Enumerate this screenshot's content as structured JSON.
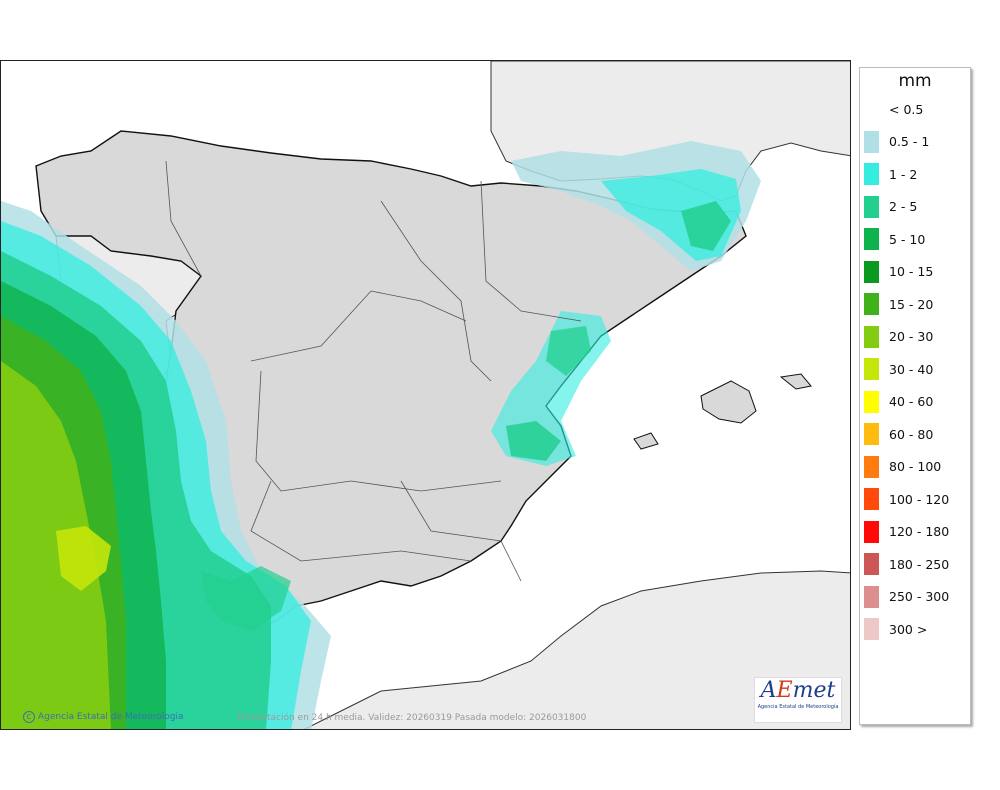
{
  "legend": {
    "unit": "mm",
    "items": [
      {
        "label": "< 0.5",
        "color": "#ffffff"
      },
      {
        "label": "0.5 - 1",
        "color": "#b0dfe5"
      },
      {
        "label": "1 - 2",
        "color": "#34eddf"
      },
      {
        "label": "2 - 5",
        "color": "#22cf8e"
      },
      {
        "label": "5 - 10",
        "color": "#0fb34e"
      },
      {
        "label": "10 - 15",
        "color": "#0a9a1f"
      },
      {
        "label": "15 - 20",
        "color": "#40b01b"
      },
      {
        "label": "20 - 30",
        "color": "#84cc12"
      },
      {
        "label": "30 - 40",
        "color": "#c5e60b"
      },
      {
        "label": "40 - 60",
        "color": "#fffe00"
      },
      {
        "label": "60 - 80",
        "color": "#ffbb10"
      },
      {
        "label": "80 - 100",
        "color": "#ff7b0f"
      },
      {
        "label": "100 - 120",
        "color": "#ff4a0c"
      },
      {
        "label": "120 - 180",
        "color": "#ff0a07"
      },
      {
        "label": "180 - 250",
        "color": "#cd5656"
      },
      {
        "label": "250 - 300",
        "color": "#dc8f8f"
      },
      {
        "label": "300 >",
        "color": "#eec7c7"
      }
    ]
  },
  "footer": {
    "credit": "Agencia Estatal de Meteorologia",
    "caption": "Precipitación en 24 h media. Validez: 20260319 Pasada modelo: 2026031800"
  },
  "logo": {
    "word_a": "A",
    "word_e": "E",
    "word_rest": "met",
    "subtitle": "Agencia Estatal de Meteorología"
  },
  "colors": {
    "sea": "#ffffff",
    "foreign_land": "#ececec",
    "spain_land": "#d9d9d9",
    "border": "#111111"
  }
}
